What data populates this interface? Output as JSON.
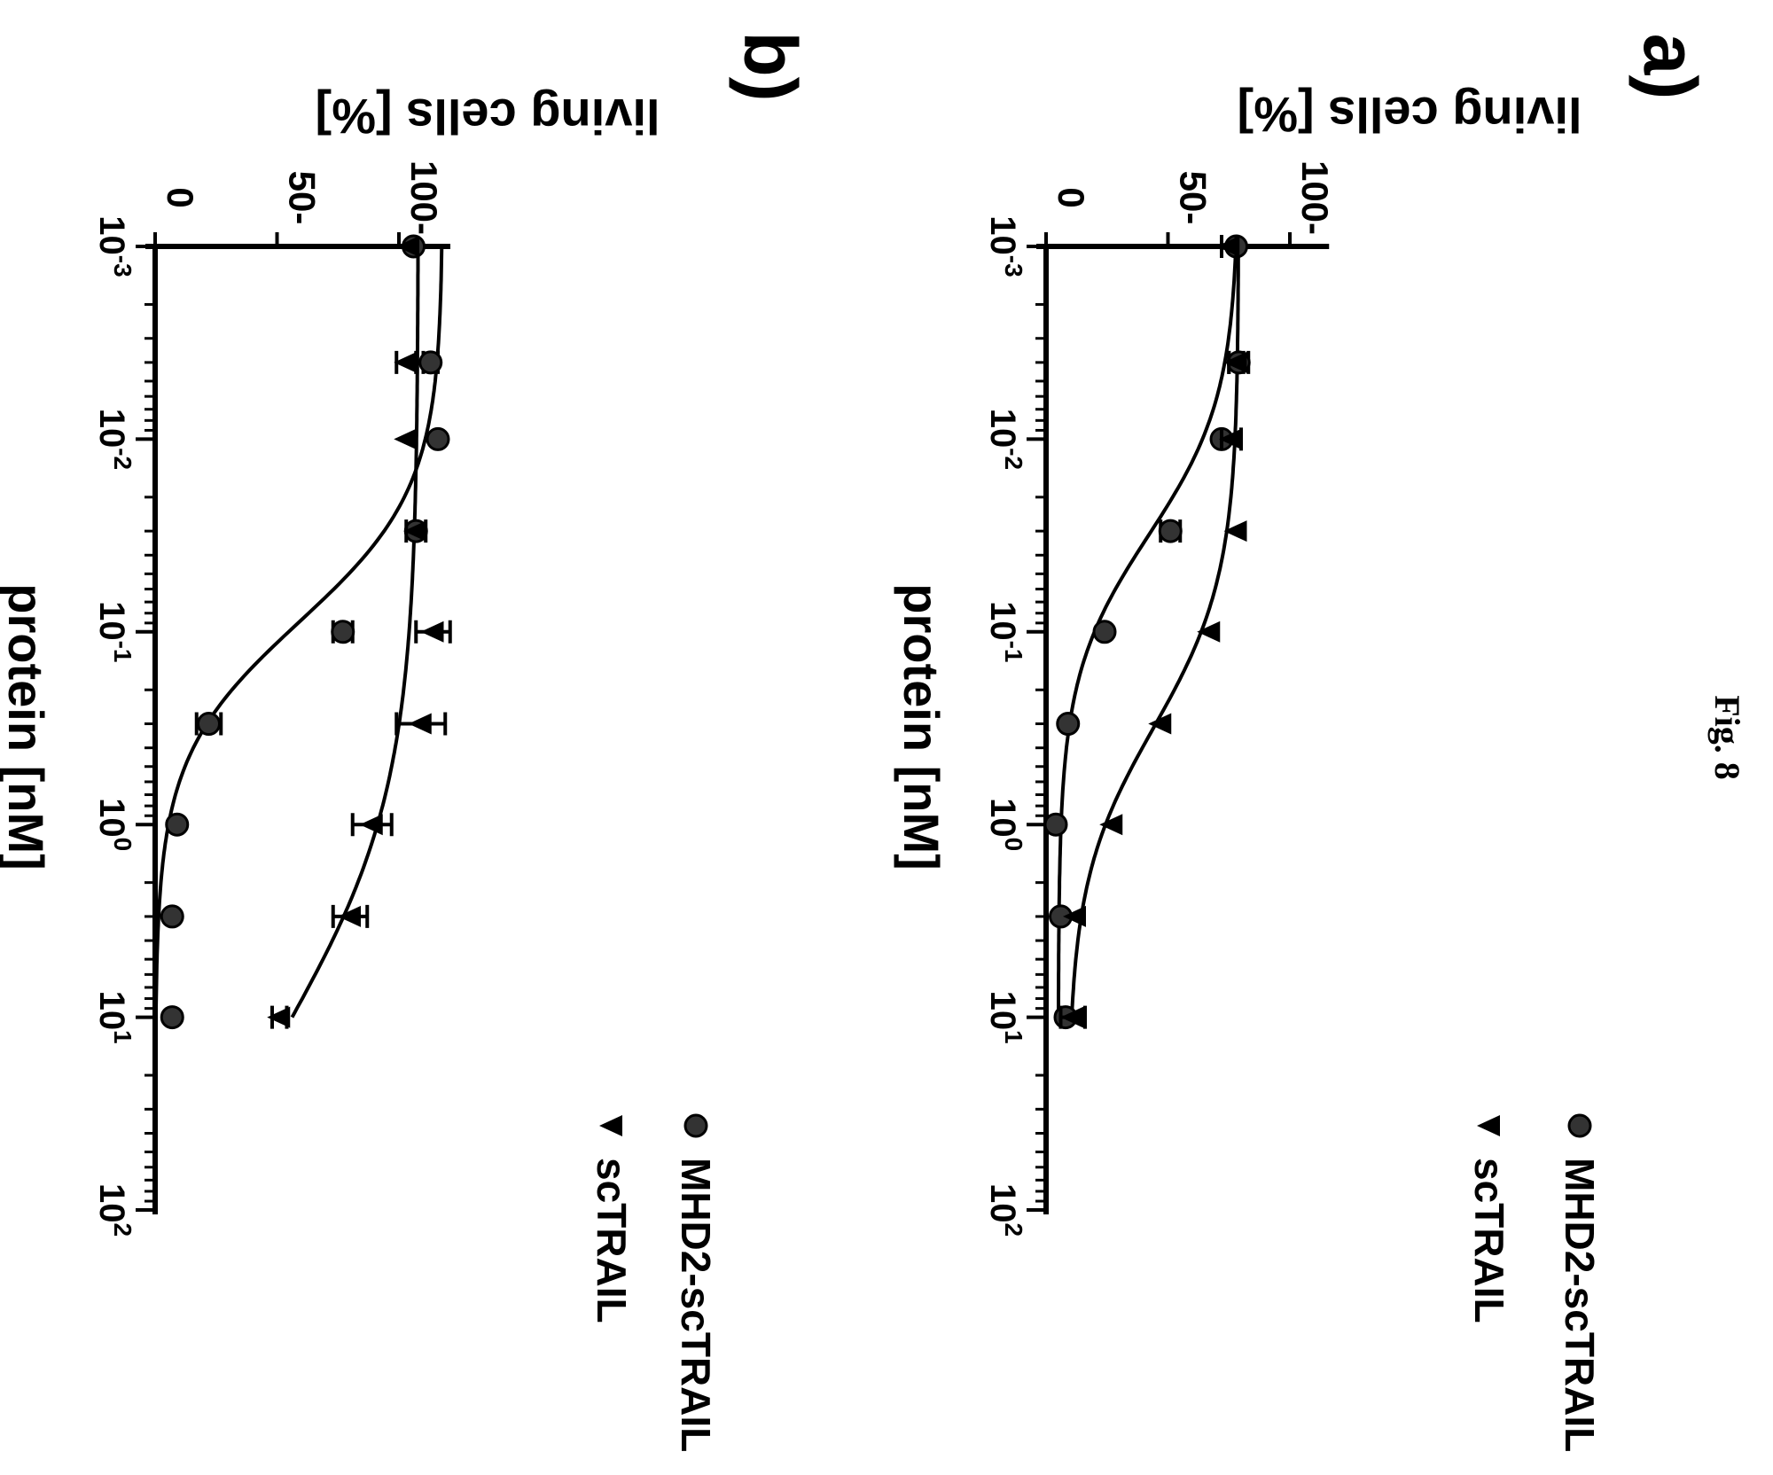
{
  "figure_label": "Fig. 8",
  "colors": {
    "ink": "#000000",
    "circle_marker": "#333333",
    "background": "#ffffff"
  },
  "chart_data": [
    {
      "panel_label": "a)",
      "type": "scatter",
      "x_scale": "log",
      "xlim": [
        0.001,
        100
      ],
      "ylim": [
        0,
        115
      ],
      "xlabel": "protein [nM]",
      "ylabel": "living cells [%]",
      "x_tick_labels": [
        {
          "base": "10",
          "exp": "-3"
        },
        {
          "base": "10",
          "exp": "-2"
        },
        {
          "base": "10",
          "exp": "-1"
        },
        {
          "base": "10",
          "exp": "0"
        },
        {
          "base": "10",
          "exp": "1"
        },
        {
          "base": "10",
          "exp": "2"
        }
      ],
      "y_ticks": [
        0,
        50,
        100
      ],
      "y_tick_labels": [
        "0",
        "50-",
        "100-"
      ],
      "legend": [
        {
          "label": "MHD2-scTRAIL",
          "marker": "circle"
        },
        {
          "label": "scTRAIL",
          "marker": "triangle"
        }
      ],
      "series": [
        {
          "name": "MHD2-scTRAIL",
          "marker": "circle",
          "x": [
            0.001,
            0.004,
            0.01,
            0.03,
            0.1,
            0.3,
            1,
            3,
            10
          ],
          "y": [
            78,
            79,
            72,
            51,
            24,
            9,
            4,
            6,
            8
          ],
          "err": [
            0,
            4,
            0,
            4,
            0,
            0,
            0,
            0,
            0
          ],
          "fit": {
            "top": 79,
            "bottom": 5,
            "log_ec50": -1.5,
            "hill": 1.2
          }
        },
        {
          "name": "scTRAIL",
          "marker": "triangle",
          "x": [
            0.001,
            0.004,
            0.01,
            0.03,
            0.1,
            0.3,
            1,
            3,
            10
          ],
          "y": [
            75,
            78,
            76,
            78,
            67,
            47,
            27,
            12,
            11
          ],
          "err": [
            3,
            3,
            4,
            0,
            0,
            0,
            0,
            0,
            5
          ],
          "fit": {
            "top": 79,
            "bottom": 9,
            "log_ec50": -0.5,
            "hill": 1.1
          }
        }
      ]
    },
    {
      "panel_label": "b)",
      "type": "scatter",
      "x_scale": "log",
      "xlim": [
        0.001,
        100
      ],
      "ylim": [
        0,
        120
      ],
      "xlabel": "protein [nM]",
      "ylabel": "living cells [%]",
      "x_tick_labels": [
        {
          "base": "10",
          "exp": "-3"
        },
        {
          "base": "10",
          "exp": "-2"
        },
        {
          "base": "10",
          "exp": "-1"
        },
        {
          "base": "10",
          "exp": "0"
        },
        {
          "base": "10",
          "exp": "1"
        },
        {
          "base": "10",
          "exp": "2"
        }
      ],
      "y_ticks": [
        0,
        50,
        100
      ],
      "y_tick_labels": [
        "0",
        "50-",
        "100-"
      ],
      "legend": [
        {
          "label": "MHD2-scTRAIL",
          "marker": "circle"
        },
        {
          "label": "scTRAIL",
          "marker": "triangle"
        }
      ],
      "series": [
        {
          "name": "MHD2-scTRAIL",
          "marker": "circle",
          "x": [
            0.001,
            0.004,
            0.01,
            0.03,
            0.1,
            0.3,
            1,
            3,
            10
          ],
          "y": [
            106,
            113,
            116,
            107,
            77,
            22,
            9,
            7,
            7
          ],
          "err": [
            0,
            3,
            0,
            0,
            4,
            5,
            0,
            0,
            0
          ],
          "fit": {
            "top": 118,
            "bottom": 0,
            "log_ec50": -1.05,
            "hill": 1.25
          }
        },
        {
          "name": "scTRAIL",
          "marker": "triangle",
          "x": [
            0.001,
            0.004,
            0.01,
            0.03,
            0.1,
            0.3,
            1,
            3,
            10
          ],
          "y": [
            104,
            103,
            103,
            107,
            114,
            109,
            89,
            80,
            51
          ],
          "err": [
            0,
            4,
            0,
            4,
            7,
            10,
            8,
            7,
            3
          ],
          "fit": {
            "top": 108,
            "bottom": 0,
            "log_ec50": 1.05,
            "hill": 0.7
          }
        }
      ]
    }
  ]
}
